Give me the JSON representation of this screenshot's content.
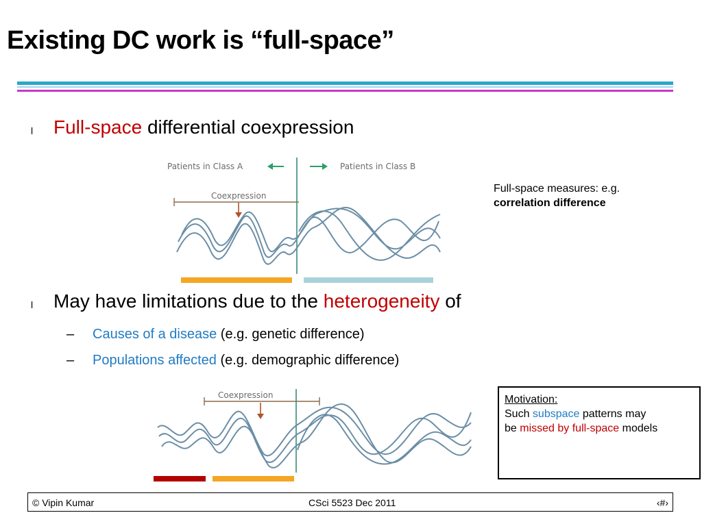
{
  "title": "Existing DC work is “full-space”",
  "bullet_marker": "l",
  "bullet1": {
    "highlight": "Full-space",
    "rest": " differential coexpression"
  },
  "figure1": {
    "class_a_label": "Patients in Class A",
    "class_b_label": "Patients in Class B",
    "coexpression_label": "Coexpression",
    "bar_colors": [
      "#f5a623",
      "#a8d3dc"
    ]
  },
  "side_note": {
    "line1": "Full-space measures: e.g.",
    "line2": "correlation difference"
  },
  "bullet2": {
    "prefix": "May have limitations due to the ",
    "highlight": "heterogeneity",
    "suffix": " of"
  },
  "sub_bullets": [
    {
      "dash": "–",
      "highlight": "Causes of a disease",
      "rest": " (e.g. genetic difference)"
    },
    {
      "dash": "–",
      "highlight": "Populations affected",
      "rest": " (e.g. demographic difference)"
    }
  ],
  "figure2": {
    "coexpression_label": "Coexpression",
    "bar_colors": [
      "#b30000",
      "#f5a623"
    ]
  },
  "motivation": {
    "heading": "Motivation:",
    "l1_pre": "Such ",
    "l1_hl": "subspace",
    "l1_post": " patterns may",
    "l2_pre": "be ",
    "l2_hl": "missed by full-space",
    "l2_post": " models"
  },
  "footer": {
    "left": "© Vipin Kumar",
    "middle": "CSci 5523 Dec  2011",
    "right": "‹#›"
  },
  "colors": {
    "accent_red": "#c00000",
    "accent_blue": "#1f7bc4",
    "rule_cyan": "#2aa7c9",
    "rule_magenta": "#c838c8",
    "curve": "#6b8ea6",
    "divider": "#3a8a7a"
  }
}
